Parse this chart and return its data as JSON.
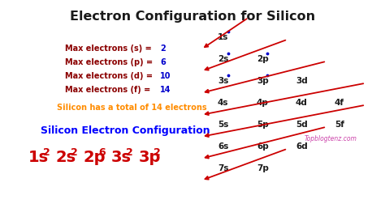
{
  "title": "Electron Configuration for Silicon",
  "title_color": "#1a1a1a",
  "bg_color": "#ffffff",
  "left_text_items": [
    {
      "text": "Max electrons (s) = ",
      "value": "2"
    },
    {
      "text": "Max electrons (p) = ",
      "value": "6"
    },
    {
      "text": "Max electrons (d) = ",
      "value": "10"
    },
    {
      "text": "Max electrons (f) = ",
      "value": "14"
    }
  ],
  "left_text_color": "#8B0000",
  "value_color": "#0000cc",
  "orange_text": "Silicon has a total of 14 electrons",
  "orange_color": "#FF8C00",
  "blue_label": "Silicon Electron Configuration",
  "blue_color": "#0000FF",
  "config_color": "#cc0000",
  "config_parts": [
    [
      "1s",
      "2"
    ],
    [
      "2s",
      "2"
    ],
    [
      "2p",
      "6"
    ],
    [
      "3s",
      "2"
    ],
    [
      "3p",
      "2"
    ]
  ],
  "orbital_grid": [
    [
      "1s"
    ],
    [
      "2s",
      "2p"
    ],
    [
      "3s",
      "3p",
      "3d"
    ],
    [
      "4s",
      "4p",
      "4d",
      "4f"
    ],
    [
      "5s",
      "5p",
      "5d",
      "5f"
    ],
    [
      "6s",
      "6p",
      "6d"
    ],
    [
      "7s",
      "7p"
    ]
  ],
  "orbital_color": "#1a1a1a",
  "dot_orbitals": [
    "1s",
    "2s",
    "3s",
    "2p",
    "3p"
  ],
  "dot_color": "#0000cc",
  "arrow_color": "#cc0000",
  "watermark": "Topblogtenz.com",
  "watermark_color": "#cc44aa"
}
